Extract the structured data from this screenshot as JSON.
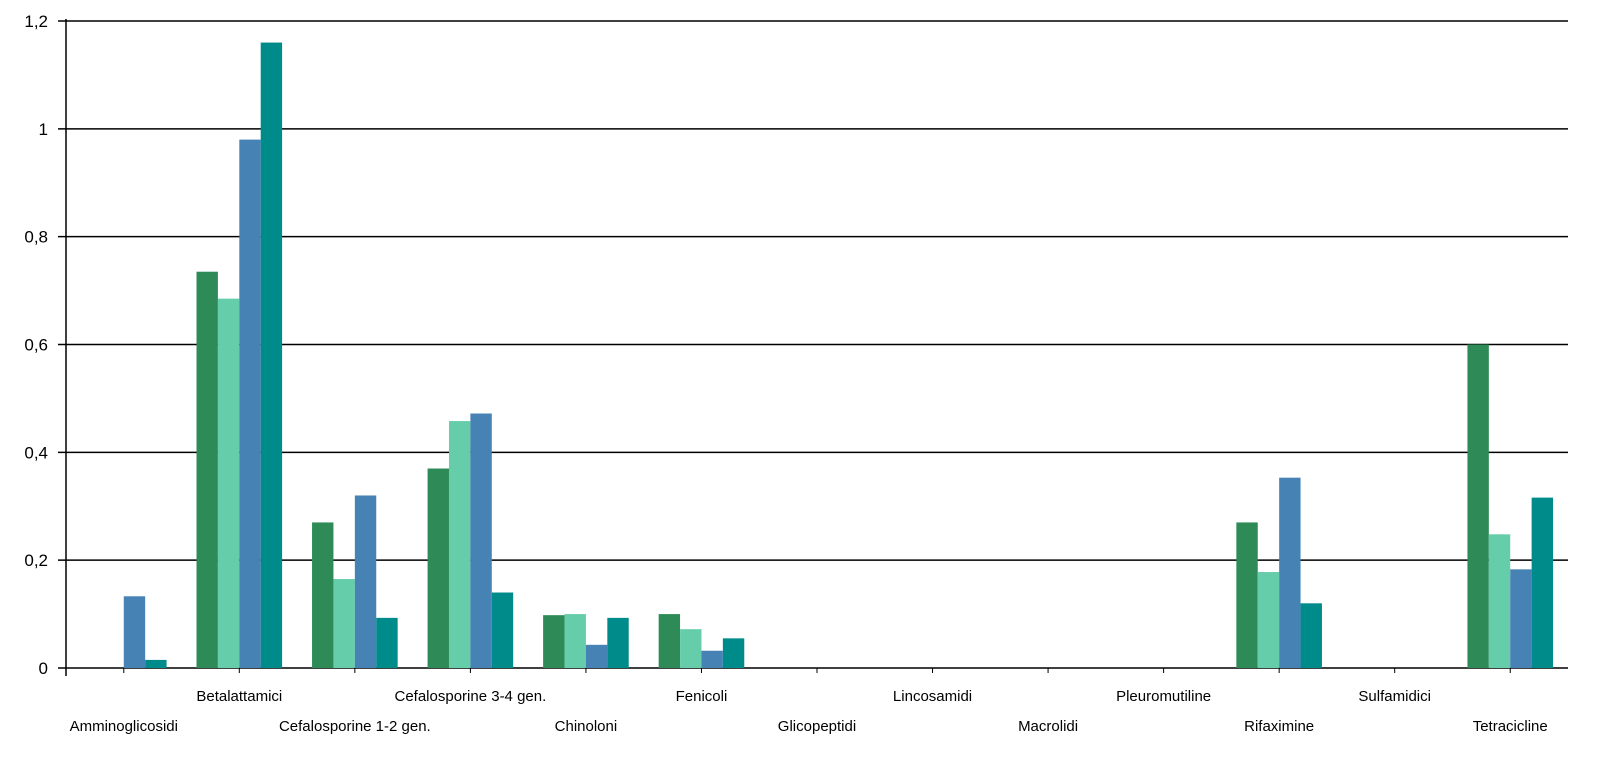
{
  "chart_data": {
    "type": "bar",
    "categories": [
      "Amminoglicosidi",
      "Betalattamici",
      "Cefalosporine 1-2 gen.",
      "Cefalosporine 3-4 gen.",
      "Chinoloni",
      "Fenicoli",
      "Glicopeptidi",
      "Lincosamidi",
      "Macrolidi",
      "Pleuromutiline",
      "Rifaximine",
      "Sulfamidici",
      "Tetracicline"
    ],
    "series": [
      {
        "color": "#2e8b57",
        "values": [
          0,
          0.735,
          0.27,
          0.37,
          0.098,
          0.1,
          0,
          0,
          0,
          0,
          0.27,
          0,
          0.6
        ]
      },
      {
        "color": "#66cdaa",
        "values": [
          0,
          0.685,
          0.165,
          0.458,
          0.1,
          0.072,
          0,
          0,
          0,
          0,
          0.178,
          0,
          0.248
        ]
      },
      {
        "color": "#4682b4",
        "values": [
          0.133,
          0.98,
          0.32,
          0.472,
          0.043,
          0.032,
          0,
          0,
          0,
          0,
          0.353,
          0,
          0.183
        ]
      },
      {
        "color": "#008b8b",
        "values": [
          0.015,
          1.16,
          0.093,
          0.14,
          0.093,
          0.055,
          0,
          0,
          0,
          0,
          0.12,
          0,
          0.316
        ]
      }
    ],
    "y_ticks": [
      "0",
      "0,2",
      "0,4",
      "0,6",
      "0,8",
      "1",
      "1,2"
    ],
    "ylim": [
      0,
      1.2
    ],
    "grid": true,
    "title": "",
    "xlabel": "",
    "ylabel": ""
  }
}
